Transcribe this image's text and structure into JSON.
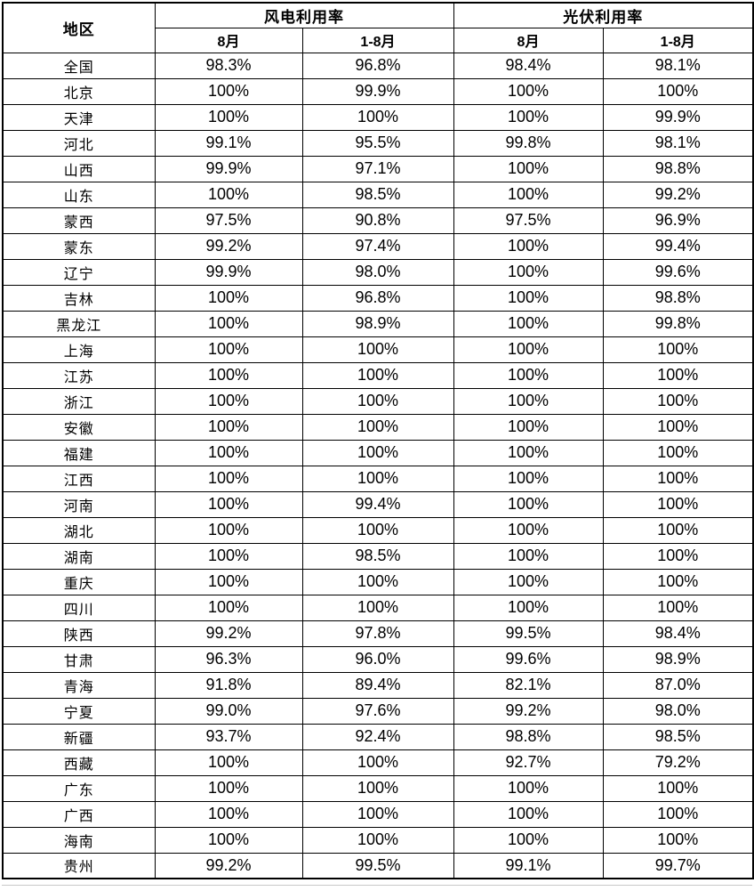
{
  "chart_data": {
    "type": "table",
    "header": {
      "region_label": "地区",
      "groups": [
        {
          "label": "风电利用率",
          "subcolumns": [
            "8月",
            "1-8月"
          ]
        },
        {
          "label": "光伏利用率",
          "subcolumns": [
            "8月",
            "1-8月"
          ]
        }
      ]
    },
    "rows": [
      {
        "region": "全国",
        "values": [
          "98.3%",
          "96.8%",
          "98.4%",
          "98.1%"
        ]
      },
      {
        "region": "北京",
        "values": [
          "100%",
          "99.9%",
          "100%",
          "100%"
        ]
      },
      {
        "region": "天津",
        "values": [
          "100%",
          "100%",
          "100%",
          "99.9%"
        ]
      },
      {
        "region": "河北",
        "values": [
          "99.1%",
          "95.5%",
          "99.8%",
          "98.1%"
        ]
      },
      {
        "region": "山西",
        "values": [
          "99.9%",
          "97.1%",
          "100%",
          "98.8%"
        ]
      },
      {
        "region": "山东",
        "values": [
          "100%",
          "98.5%",
          "100%",
          "99.2%"
        ]
      },
      {
        "region": "蒙西",
        "values": [
          "97.5%",
          "90.8%",
          "97.5%",
          "96.9%"
        ]
      },
      {
        "region": "蒙东",
        "values": [
          "99.2%",
          "97.4%",
          "100%",
          "99.4%"
        ]
      },
      {
        "region": "辽宁",
        "values": [
          "99.9%",
          "98.0%",
          "100%",
          "99.6%"
        ]
      },
      {
        "region": "吉林",
        "values": [
          "100%",
          "96.8%",
          "100%",
          "98.8%"
        ]
      },
      {
        "region": "黑龙江",
        "values": [
          "100%",
          "98.9%",
          "100%",
          "99.8%"
        ]
      },
      {
        "region": "上海",
        "values": [
          "100%",
          "100%",
          "100%",
          "100%"
        ]
      },
      {
        "region": "江苏",
        "values": [
          "100%",
          "100%",
          "100%",
          "100%"
        ]
      },
      {
        "region": "浙江",
        "values": [
          "100%",
          "100%",
          "100%",
          "100%"
        ]
      },
      {
        "region": "安徽",
        "values": [
          "100%",
          "100%",
          "100%",
          "100%"
        ]
      },
      {
        "region": "福建",
        "values": [
          "100%",
          "100%",
          "100%",
          "100%"
        ]
      },
      {
        "region": "江西",
        "values": [
          "100%",
          "100%",
          "100%",
          "100%"
        ]
      },
      {
        "region": "河南",
        "values": [
          "100%",
          "99.4%",
          "100%",
          "100%"
        ]
      },
      {
        "region": "湖北",
        "values": [
          "100%",
          "100%",
          "100%",
          "100%"
        ]
      },
      {
        "region": "湖南",
        "values": [
          "100%",
          "98.5%",
          "100%",
          "100%"
        ]
      },
      {
        "region": "重庆",
        "values": [
          "100%",
          "100%",
          "100%",
          "100%"
        ]
      },
      {
        "region": "四川",
        "values": [
          "100%",
          "100%",
          "100%",
          "100%"
        ]
      },
      {
        "region": "陕西",
        "values": [
          "99.2%",
          "97.8%",
          "99.5%",
          "98.4%"
        ]
      },
      {
        "region": "甘肃",
        "values": [
          "96.3%",
          "96.0%",
          "99.6%",
          "98.9%"
        ]
      },
      {
        "region": "青海",
        "values": [
          "91.8%",
          "89.4%",
          "82.1%",
          "87.0%"
        ]
      },
      {
        "region": "宁夏",
        "values": [
          "99.0%",
          "97.6%",
          "99.2%",
          "98.0%"
        ]
      },
      {
        "region": "新疆",
        "values": [
          "93.7%",
          "92.4%",
          "98.8%",
          "98.5%"
        ]
      },
      {
        "region": "西藏",
        "values": [
          "100%",
          "100%",
          "92.7%",
          "79.2%"
        ]
      },
      {
        "region": "广东",
        "values": [
          "100%",
          "100%",
          "100%",
          "100%"
        ]
      },
      {
        "region": "广西",
        "values": [
          "100%",
          "100%",
          "100%",
          "100%"
        ]
      },
      {
        "region": "海南",
        "values": [
          "100%",
          "100%",
          "100%",
          "100%"
        ]
      },
      {
        "region": "贵州",
        "values": [
          "99.2%",
          "99.5%",
          "99.1%",
          "99.7%"
        ]
      }
    ]
  },
  "colors": {
    "background": "#ffffff",
    "text": "#000000",
    "border": "#000000",
    "shadow_line": "#c9c9c9"
  }
}
